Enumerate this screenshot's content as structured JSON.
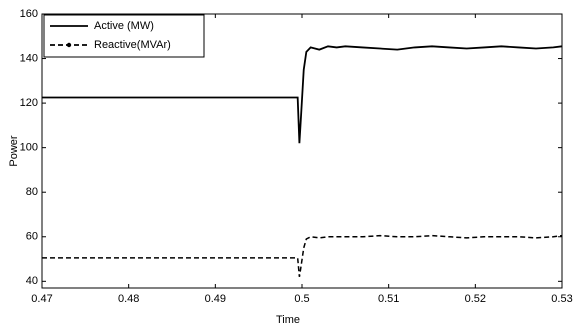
{
  "chart_data": {
    "type": "line",
    "xlabel": "Time",
    "ylabel": "Power",
    "x": [
      0.47,
      0.4995,
      0.4997,
      0.4999,
      0.5002,
      0.5005,
      0.501,
      0.502,
      0.503,
      0.504,
      0.505,
      0.507,
      0.509,
      0.511,
      0.513,
      0.515,
      0.517,
      0.519,
      0.521,
      0.523,
      0.525,
      0.527,
      0.529,
      0.53
    ],
    "series": [
      {
        "name": "Active (MW)",
        "color": "#000000",
        "dashed": false,
        "values": [
          122.5,
          122.5,
          102,
          115,
          135,
          143,
          145,
          144,
          145.5,
          145,
          145.5,
          145,
          144.5,
          144,
          145,
          145.5,
          145,
          144.5,
          145,
          145.5,
          145,
          144.5,
          145,
          145.5
        ]
      },
      {
        "name": "Reactive(MVAr)",
        "color": "#000000",
        "dashed": true,
        "values": [
          50.5,
          50.5,
          42,
          47,
          55,
          59,
          60,
          59.5,
          60,
          60,
          60,
          60,
          60.5,
          60,
          60,
          60.5,
          60,
          59.5,
          60,
          60,
          60,
          59.5,
          60,
          60.5
        ]
      }
    ],
    "xlim": [
      0.47,
      0.53
    ],
    "xticks": [
      0.47,
      0.48,
      0.49,
      0.5,
      0.51,
      0.52,
      0.53
    ],
    "ylim": [
      37,
      160
    ],
    "yticks": [
      40,
      60,
      80,
      100,
      120,
      140,
      160
    ],
    "legend": "upper left"
  }
}
